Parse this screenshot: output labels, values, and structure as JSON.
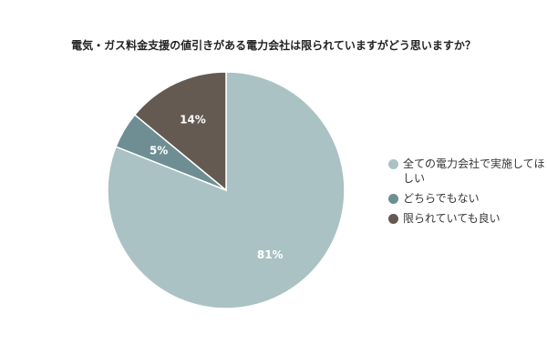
{
  "chart_data": {
    "type": "pie",
    "title": "電気・ガス料金支援の値引きがある電力会社は限られていますがどう思いますか？",
    "slices": [
      {
        "label": "全ての電力会社で実施してほしい",
        "value": 81,
        "value_label": "81%",
        "color": "#aac2c3"
      },
      {
        "label": "どちらでもない",
        "value": 5,
        "value_label": "5%",
        "color": "#6e8e93"
      },
      {
        "label": "限られていても良い",
        "value": 14,
        "value_label": "14%",
        "color": "#645a52"
      }
    ],
    "start_angle": "12 o'clock",
    "direction": "clockwise",
    "legend_position": "right"
  }
}
